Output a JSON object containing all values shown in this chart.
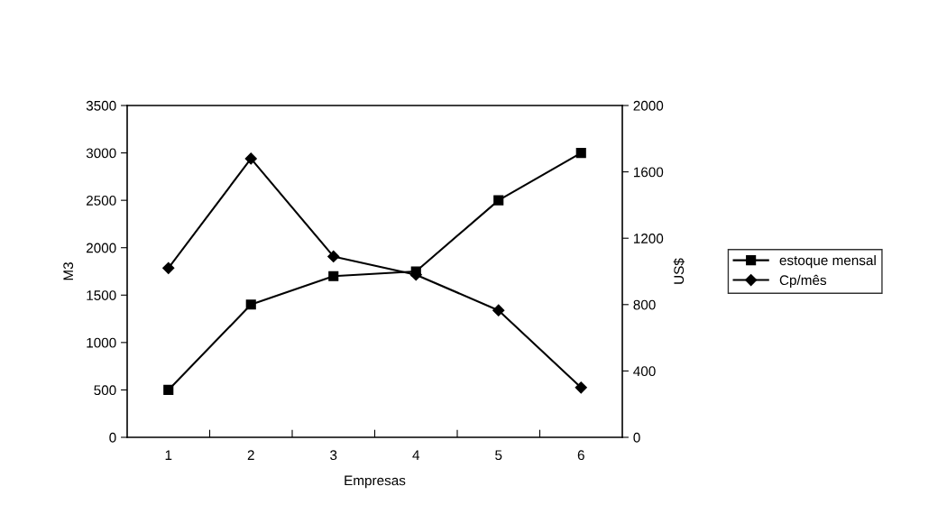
{
  "chart_data": {
    "type": "line",
    "xlabel": "Empresas",
    "ylabel": "M3",
    "y2label": "US$",
    "categories": [
      "1",
      "2",
      "3",
      "4",
      "5",
      "6"
    ],
    "series": [
      {
        "name": "estoque mensal",
        "color": "#000000",
        "marker": "square",
        "values": [
          500,
          1400,
          1700,
          1750,
          2500,
          3000
        ]
      },
      {
        "name": "Cp/mês",
        "color": "#000000",
        "marker": "diamond",
        "axis": "y2",
        "values": [
          1020,
          1680,
          1090,
          980,
          765,
          300
        ]
      }
    ],
    "ylim": [
      0,
      3500
    ],
    "yticks": [
      0,
      500,
      1000,
      1500,
      2000,
      2500,
      3000,
      3500
    ],
    "y2lim": [
      0,
      2000
    ],
    "y2ticks": [
      0,
      400,
      800,
      1200,
      1600,
      2000
    ],
    "grid": false,
    "legend": "right",
    "line_style": "solid"
  }
}
